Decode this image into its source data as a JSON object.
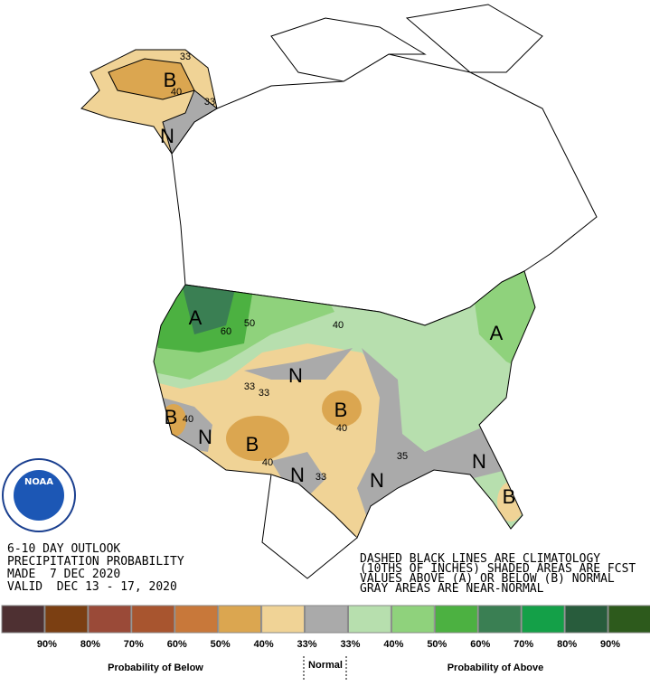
{
  "header": {
    "lines": [
      "6-10 DAY OUTLOOK",
      "PRECIPITATION PROBABILITY",
      "MADE  7 DEC 2020",
      "VALID  DEC 13 - 17, 2020"
    ]
  },
  "notes": {
    "lines": [
      "DASHED BLACK LINES ARE CLIMATOLOGY",
      "(10THS OF INCHES) SHADED AREAS ARE FCST",
      "VALUES ABOVE (A) OR BELOW (B) NORMAL",
      "GRAY AREAS ARE NEAR-NORMAL"
    ]
  },
  "logo": {
    "text": "NOAA"
  },
  "map": {
    "labels": [
      "33",
      "B",
      "40",
      "33",
      "N",
      "A",
      "60",
      "50",
      "40",
      "A",
      "N",
      "33",
      "33",
      "B",
      "40",
      "N",
      "B",
      "40",
      "B",
      "40",
      "N",
      "33",
      "N",
      "35",
      "N",
      "B"
    ]
  },
  "legend": {
    "colors": [
      "#4e3032",
      "#7b3f12",
      "#9a4a38",
      "#a8552f",
      "#c8783a",
      "#dba650",
      "#f0d396",
      "#aaaaaa",
      "#b7dfae",
      "#8fd27c",
      "#4cb141",
      "#3a7f53",
      "#14a048",
      "#285c3c",
      "#2d5a1c"
    ],
    "labels": [
      "90%",
      "80%",
      "70%",
      "60%",
      "50%",
      "40%",
      "33%",
      "33%",
      "40%",
      "50%",
      "60%",
      "70%",
      "80%",
      "90%"
    ],
    "below": "Probability of Below",
    "normal": "Normal",
    "above": "Probability of Above"
  }
}
